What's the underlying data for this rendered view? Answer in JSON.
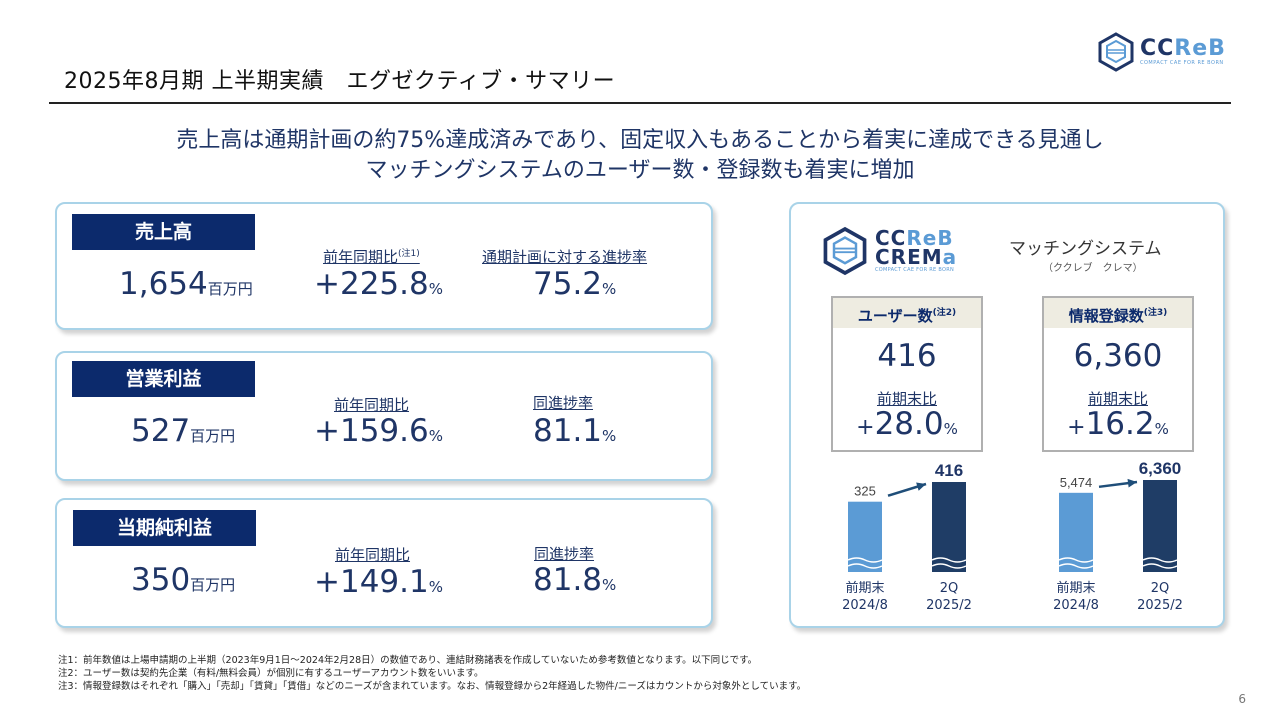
{
  "header": {
    "title": "2025年8月期 上半期実績　エグゼクティブ・サマリー",
    "logo_main_dark": "CC",
    "logo_main_accent": "ReB",
    "logo_sub": "COMPACT CAE FOR RE BORN"
  },
  "headline": {
    "line1": "売上高は通期計画の約75%達成済みであり、固定収入もあることから着実に達成できる見通し",
    "line2": "マッチングシステムのユーザー数・登録数も着実に増加"
  },
  "cards": [
    {
      "label": "売上高",
      "value": "1,654",
      "unit": "百万円",
      "metric1_label": "前年同期比",
      "metric1_note": "(注1)",
      "metric1_value": "+225.8",
      "metric1_unit": "%",
      "metric2_label": "通期計画に対する進捗率",
      "metric2_value": "75.2",
      "metric2_unit": "%"
    },
    {
      "label": "営業利益",
      "value": "527",
      "unit": "百万円",
      "metric1_label": "前年同期比",
      "metric1_note": "",
      "metric1_value": "+159.6",
      "metric1_unit": "%",
      "metric2_label": "同進捗率",
      "metric2_value": "81.1",
      "metric2_unit": "%"
    },
    {
      "label": "当期純利益",
      "value": "350",
      "unit": "百万円",
      "metric1_label": "前年同期比",
      "metric1_note": "",
      "metric1_value": "+149.1",
      "metric1_unit": "%",
      "metric2_label": "同進捗率",
      "metric2_value": "81.8",
      "metric2_unit": "%"
    }
  ],
  "crema": {
    "logo_line1_dark": "CC",
    "logo_line1_accent": "ReB",
    "logo_line2_dark": "CREM",
    "logo_line2_accent": "a",
    "logo_sub": "COMPACT CAE FOR RE BORN",
    "system_name": "マッチングシステム",
    "system_reading": "（ククレブ　クレマ）",
    "users": {
      "label": "ユーザー数",
      "note": "(注2)",
      "value": "416",
      "change_label": "前期末比",
      "change_sign": "+",
      "change_value": "28.0",
      "change_unit": "%"
    },
    "listings": {
      "label": "情報登録数",
      "note": "(注3)",
      "value": "6,360",
      "change_label": "前期末比",
      "change_sign": "+",
      "change_value": "16.2",
      "change_unit": "%"
    }
  },
  "chart_data": [
    {
      "type": "bar",
      "categories": [
        "前期末\n2024/8",
        "2Q\n2025/2"
      ],
      "category_lines": [
        [
          "前期末",
          "2024/8"
        ],
        [
          "2Q",
          "2025/2"
        ]
      ],
      "values": [
        325,
        416
      ],
      "value_labels": [
        "325",
        "416"
      ],
      "colors": [
        "#5b9bd5",
        "#1f3d66"
      ],
      "ylim": [
        0,
        416
      ]
    },
    {
      "type": "bar",
      "categories": [
        "前期末\n2024/8",
        "2Q\n2025/2"
      ],
      "category_lines": [
        [
          "前期末",
          "2024/8"
        ],
        [
          "2Q",
          "2025/2"
        ]
      ],
      "values": [
        5474,
        6360
      ],
      "value_labels": [
        "5,474",
        "6,360"
      ],
      "colors": [
        "#5b9bd5",
        "#1f3d66"
      ],
      "ylim": [
        0,
        6360
      ]
    }
  ],
  "footnotes": [
    "注1：前年数値は上場申請期の上半期（2023年9月1日～2024年2月28日）の数値であり、連結財務諸表を作成していないため参考数値となります。以下同じです。",
    "注2：ユーザー数は契約先企業（有料/無料会員）が個別に有するユーザーアカウント数をいいます。",
    "注3：情報登録数はそれぞれ「購入」「売却」「賃貸」「賃借」などのニーズが含まれています。なお、情報登録から2年経過した物件/ニーズはカウントから対象外としています。"
  ],
  "page_number": "6"
}
